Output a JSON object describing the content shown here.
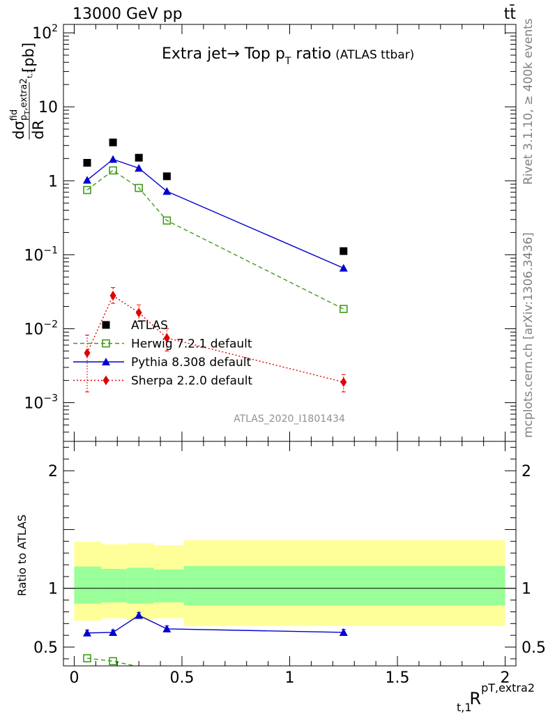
{
  "header": {
    "energy_label": "13000 GeV pp",
    "process_label": "tt̄",
    "rivet_label": "Rivet 3.1.10, ≥ 400k events",
    "mcplots_label": "mcplots.cern.ch [arXiv:1306.3436]",
    "analysis_label": "ATLAS_2020_I1801434"
  },
  "chart_data": [
    {
      "type": "scatter",
      "title_main": "Extra jet→ Top p",
      "title_sub": "T",
      "title_tail": " ratio",
      "title_small": "(ATLAS ttbar)",
      "ylabel_parts": [
        "d",
        "σ",
        "fid",
        "p",
        "T",
        ",extra2",
        "t,1",
        "dR",
        "[pb]"
      ],
      "yscale": "log",
      "xlim": [
        -0.05,
        2.05
      ],
      "ylim": [
        0.0003,
        130
      ],
      "y_major_ticks": [
        {
          "v": 100,
          "base": "10",
          "exp": "2"
        },
        {
          "v": 10,
          "base": "10",
          "exp": ""
        },
        {
          "v": 1,
          "base": "1",
          "exp": ""
        },
        {
          "v": 0.1,
          "base": "10",
          "exp": "−1"
        },
        {
          "v": 0.01,
          "base": "10",
          "exp": "−2"
        },
        {
          "v": 0.001,
          "base": "10",
          "exp": "−3"
        }
      ],
      "legend_position": "lower-left",
      "series": [
        {
          "name": "ATLAS",
          "color": "#000000",
          "marker": "square",
          "line": "none",
          "x": [
            0.06,
            0.18,
            0.3,
            0.43,
            1.25
          ],
          "y": [
            1.75,
            3.3,
            2.05,
            1.15,
            0.112
          ],
          "band_edges": [
            0.0,
            0.125,
            0.245,
            0.37,
            0.51,
            2.0
          ]
        },
        {
          "name": "Herwig 7.2.1 default",
          "color": "#3f9a1a",
          "marker": "open-square",
          "line": "dashed",
          "x": [
            0.06,
            0.18,
            0.3,
            0.43,
            1.25
          ],
          "y": [
            0.75,
            1.38,
            0.8,
            0.29,
            0.0185
          ]
        },
        {
          "name": "Pythia 8.308 default",
          "color": "#0000d0",
          "marker": "triangle",
          "line": "solid",
          "x": [
            0.06,
            0.18,
            0.3,
            0.43,
            1.25
          ],
          "y": [
            1.02,
            1.95,
            1.48,
            0.72,
            0.066
          ]
        },
        {
          "name": "Sherpa 2.2.0 default",
          "color": "#e00000",
          "marker": "diamond",
          "line": "dotted",
          "x": [
            0.06,
            0.18,
            0.3,
            0.43,
            1.25
          ],
          "y": [
            0.0047,
            0.028,
            0.0165,
            0.0075,
            0.0019
          ],
          "err_lo": [
            0.0033,
            0.006,
            0.004,
            0.0025,
            0.0005
          ],
          "err_hi": [
            0.0035,
            0.008,
            0.0045,
            0.0025,
            0.0005
          ]
        }
      ]
    },
    {
      "type": "scatter",
      "ylabel": "Ratio to ATLAS",
      "xlabel_base": "R",
      "xlabel_sup": "pT,extra2",
      "xlabel_sub": "t,1",
      "xlim": [
        -0.05,
        2.05
      ],
      "ylim": [
        0.34,
        2.25
      ],
      "x_major_ticks": [
        {
          "v": 0,
          "label": "0"
        },
        {
          "v": 0.5,
          "label": "0.5"
        },
        {
          "v": 1,
          "label": "1"
        },
        {
          "v": 1.5,
          "label": "1.5"
        },
        {
          "v": 2,
          "label": "2"
        }
      ],
      "y_major_ticks": [
        {
          "v": 0.5,
          "label": "0.5"
        },
        {
          "v": 1,
          "label": "1"
        },
        {
          "v": 2,
          "label": "2"
        }
      ],
      "bands": [
        {
          "x0": 0.0,
          "x1": 0.125,
          "yellow": [
            0.725,
            1.395
          ],
          "green": [
            0.87,
            1.185
          ]
        },
        {
          "x0": 0.125,
          "x1": 0.245,
          "yellow": [
            0.745,
            1.375
          ],
          "green": [
            0.88,
            1.165
          ]
        },
        {
          "x0": 0.245,
          "x1": 0.37,
          "yellow": [
            0.73,
            1.385
          ],
          "green": [
            0.87,
            1.175
          ]
        },
        {
          "x0": 0.37,
          "x1": 0.51,
          "yellow": [
            0.745,
            1.365
          ],
          "green": [
            0.88,
            1.16
          ]
        },
        {
          "x0": 0.51,
          "x1": 2.0,
          "yellow": [
            0.68,
            1.41
          ],
          "green": [
            0.855,
            1.19
          ]
        }
      ],
      "series": [
        {
          "name": "Pythia 8.308 default",
          "color": "#0000d0",
          "marker": "triangle",
          "line": "solid",
          "x": [
            0.06,
            0.18,
            0.3,
            0.43,
            1.25
          ],
          "y": [
            0.62,
            0.625,
            0.77,
            0.655,
            0.625
          ],
          "err": [
            0.025,
            0.02,
            0.025,
            0.025,
            0.025
          ]
        },
        {
          "name": "Herwig 7.2.1 default",
          "color": "#3f9a1a",
          "marker": "open-square",
          "line": "dashed",
          "x": [
            0.06,
            0.18,
            0.28
          ],
          "y": [
            0.405,
            0.38,
            0.34
          ]
        }
      ]
    }
  ]
}
